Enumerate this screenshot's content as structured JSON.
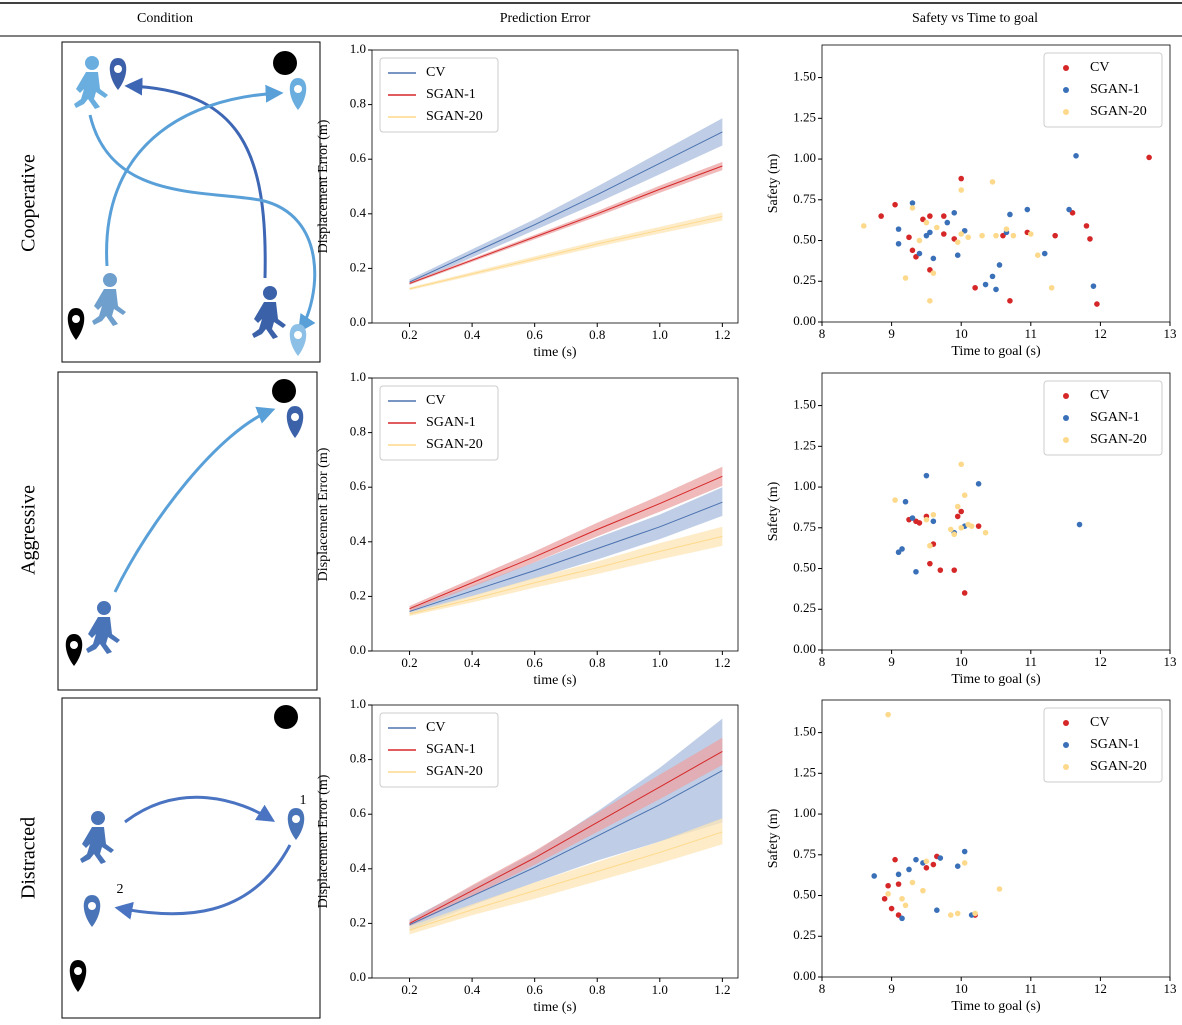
{
  "header": [
    "Condition",
    "Prediction Error",
    "Safety vs Time to goal"
  ],
  "rows": [
    "Cooperative",
    "Aggressive",
    "Distracted"
  ],
  "diagram_labels": [
    "1",
    "2"
  ],
  "chart_data": [
    {
      "type": "line",
      "xlabel": "time (s)",
      "ylabel": "Displacement Error (m)",
      "legend": "upper left",
      "xlim": [
        0.08,
        1.25
      ],
      "ylim": [
        0,
        1.0
      ],
      "xticks": [
        0.2,
        0.4,
        0.6,
        0.8,
        {
          "value": 1.0,
          "label": "1.0"
        },
        1.2
      ],
      "yticks": [
        {
          "value": 0,
          "label": "0.0"
        },
        0.2,
        0.4,
        0.6,
        0.8,
        {
          "value": 1.0,
          "label": "1.0"
        }
      ],
      "x": [
        0.2,
        0.4,
        0.6,
        0.8,
        1.0,
        1.2
      ],
      "series": [
        {
          "name": "CV",
          "color": "#4c72b0",
          "band_color": "#a9bddd",
          "values": [
            0.15,
            0.255,
            0.36,
            0.47,
            0.585,
            0.7
          ],
          "lower": [
            0.14,
            0.24,
            0.34,
            0.44,
            0.545,
            0.65
          ],
          "upper": [
            0.16,
            0.27,
            0.38,
            0.5,
            0.625,
            0.75
          ]
        },
        {
          "name": "SGAN-1",
          "color": "#d62728",
          "band_color": "#eba3a3",
          "values": [
            0.145,
            0.23,
            0.315,
            0.4,
            0.49,
            0.575
          ],
          "lower": [
            0.14,
            0.224,
            0.307,
            0.39,
            0.477,
            0.56
          ],
          "upper": [
            0.15,
            0.236,
            0.323,
            0.41,
            0.503,
            0.59
          ]
        },
        {
          "name": "SGAN-20",
          "color": "#fdd98c",
          "band_color": "#fde5b5",
          "values": [
            0.125,
            0.18,
            0.235,
            0.29,
            0.34,
            0.39
          ],
          "lower": [
            0.12,
            0.173,
            0.226,
            0.279,
            0.328,
            0.375
          ],
          "upper": [
            0.13,
            0.187,
            0.244,
            0.301,
            0.352,
            0.405
          ]
        }
      ]
    },
    {
      "type": "scatter",
      "xlabel": "Time to goal (s)",
      "ylabel": "Safety (m)",
      "legend": "upper right",
      "xlim": [
        8,
        13
      ],
      "ylim": [
        0,
        1.7
      ],
      "xticks": [
        8,
        9,
        10,
        11,
        12,
        13
      ],
      "yticks": [
        {
          "value": 0,
          "label": "0.00"
        },
        {
          "value": 0.25,
          "label": "0.25"
        },
        {
          "value": 0.5,
          "label": "0.50"
        },
        {
          "value": 0.75,
          "label": "0.75"
        },
        {
          "value": 1.0,
          "label": "1.00"
        },
        {
          "value": 1.25,
          "label": "1.25"
        },
        {
          "value": 1.5,
          "label": "1.50"
        }
      ],
      "series": [
        {
          "name": "CV",
          "color": "#d62728",
          "x": [
            12.7,
            10.0,
            8.85,
            9.05,
            9.25,
            9.3,
            9.45,
            9.55,
            9.55,
            9.75,
            9.9,
            10.2,
            10.6,
            10.7,
            10.95,
            11.35,
            11.6,
            11.8,
            11.85,
            11.95,
            9.75,
            9.35
          ],
          "values": [
            1.01,
            0.88,
            0.65,
            0.72,
            0.52,
            0.44,
            0.63,
            0.32,
            0.65,
            0.65,
            0.51,
            0.21,
            0.53,
            0.13,
            0.55,
            0.53,
            0.67,
            0.59,
            0.51,
            0.11,
            0.54,
            0.4
          ]
        },
        {
          "name": "SGAN-1",
          "color": "#3a70b8",
          "x": [
            11.65,
            9.3,
            9.1,
            9.1,
            9.4,
            9.5,
            9.6,
            9.95,
            9.9,
            10.05,
            10.35,
            10.45,
            10.5,
            10.55,
            10.65,
            10.7,
            10.95,
            11.2,
            11.55,
            11.9,
            9.8,
            9.55
          ],
          "values": [
            1.02,
            0.73,
            0.48,
            0.57,
            0.42,
            0.53,
            0.39,
            0.41,
            0.67,
            0.56,
            0.23,
            0.28,
            0.2,
            0.35,
            0.55,
            0.66,
            0.69,
            0.42,
            0.69,
            0.22,
            0.61,
            0.55
          ]
        },
        {
          "name": "SGAN-20",
          "color": "#fdd98c",
          "x": [
            8.6,
            9.2,
            9.3,
            9.5,
            9.55,
            9.65,
            9.6,
            10.0,
            10.0,
            10.1,
            10.3,
            10.45,
            10.5,
            10.65,
            10.75,
            11.0,
            11.1,
            11.3,
            9.95,
            9.4
          ],
          "values": [
            0.59,
            0.27,
            0.7,
            0.61,
            0.13,
            0.58,
            0.3,
            0.81,
            0.54,
            0.52,
            0.53,
            0.86,
            0.53,
            0.57,
            0.53,
            0.54,
            0.41,
            0.21,
            0.49,
            0.5
          ]
        }
      ]
    },
    {
      "type": "line",
      "xlabel": "time (s)",
      "ylabel": "Displacement Error (m)",
      "legend": "upper left",
      "xlim": [
        0.08,
        1.25
      ],
      "ylim": [
        0,
        1.0
      ],
      "xticks": [
        0.2,
        0.4,
        0.6,
        0.8,
        {
          "value": 1.0,
          "label": "1.0"
        },
        1.2
      ],
      "yticks": [
        {
          "value": 0,
          "label": "0.0"
        },
        0.2,
        0.4,
        0.6,
        0.8,
        {
          "value": 1.0,
          "label": "1.0"
        }
      ],
      "x": [
        0.2,
        0.4,
        0.6,
        0.8,
        1.0,
        1.2
      ],
      "series": [
        {
          "name": "CV",
          "color": "#4c72b0",
          "band_color": "#a9bddd",
          "values": [
            0.145,
            0.22,
            0.295,
            0.375,
            0.455,
            0.545
          ],
          "lower": [
            0.135,
            0.2,
            0.265,
            0.335,
            0.41,
            0.495
          ],
          "upper": [
            0.155,
            0.24,
            0.325,
            0.415,
            0.5,
            0.6
          ]
        },
        {
          "name": "SGAN-1",
          "color": "#d62728",
          "band_color": "#eba3a3",
          "values": [
            0.155,
            0.25,
            0.345,
            0.445,
            0.54,
            0.64
          ],
          "lower": [
            0.145,
            0.235,
            0.325,
            0.42,
            0.51,
            0.605
          ],
          "upper": [
            0.165,
            0.265,
            0.365,
            0.47,
            0.57,
            0.675
          ]
        },
        {
          "name": "SGAN-20",
          "color": "#fdd98c",
          "band_color": "#fde5b5",
          "values": [
            0.135,
            0.19,
            0.25,
            0.305,
            0.365,
            0.42
          ],
          "lower": [
            0.128,
            0.178,
            0.232,
            0.282,
            0.335,
            0.385
          ],
          "upper": [
            0.142,
            0.202,
            0.268,
            0.328,
            0.395,
            0.455
          ]
        }
      ]
    },
    {
      "type": "scatter",
      "xlabel": "Time to goal (s)",
      "ylabel": "Safety (m)",
      "legend": "upper right",
      "xlim": [
        8,
        13
      ],
      "ylim": [
        0,
        1.7
      ],
      "xticks": [
        8,
        9,
        10,
        11,
        12,
        13
      ],
      "yticks": [
        {
          "value": 0,
          "label": "0.00"
        },
        {
          "value": 0.25,
          "label": "0.25"
        },
        {
          "value": 0.5,
          "label": "0.50"
        },
        {
          "value": 0.75,
          "label": "0.75"
        },
        {
          "value": 1.0,
          "label": "1.00"
        },
        {
          "value": 1.25,
          "label": "1.25"
        },
        {
          "value": 1.5,
          "label": "1.50"
        }
      ],
      "series": [
        {
          "name": "CV",
          "color": "#d62728",
          "x": [
            9.25,
            9.35,
            9.5,
            9.6,
            9.55,
            9.7,
            9.9,
            10.0,
            10.05,
            10.25,
            9.95,
            9.4
          ],
          "values": [
            0.8,
            0.79,
            0.82,
            0.65,
            0.53,
            0.49,
            0.49,
            0.85,
            0.35,
            0.76,
            0.82,
            0.78
          ]
        },
        {
          "name": "SGAN-1",
          "color": "#3a70b8",
          "x": [
            9.1,
            9.15,
            9.2,
            9.3,
            9.35,
            9.5,
            9.6,
            9.9,
            10.05,
            10.25,
            11.7
          ],
          "values": [
            0.6,
            0.62,
            0.91,
            0.81,
            0.48,
            1.07,
            0.79,
            0.72,
            0.76,
            1.02,
            0.77
          ]
        },
        {
          "name": "SGAN-20",
          "color": "#fdd98c",
          "x": [
            9.05,
            9.5,
            9.55,
            9.6,
            9.85,
            9.95,
            10.0,
            10.05,
            10.1,
            10.15,
            10.35,
            10.0,
            9.9
          ],
          "values": [
            0.92,
            0.8,
            0.64,
            0.83,
            0.74,
            0.88,
            1.14,
            0.95,
            0.77,
            0.76,
            0.72,
            0.75,
            0.71
          ]
        }
      ]
    },
    {
      "type": "line",
      "xlabel": "time (s)",
      "ylabel": "Displacement Error (m)",
      "legend": "upper left",
      "xlim": [
        0.08,
        1.25
      ],
      "ylim": [
        0,
        1.0
      ],
      "xticks": [
        0.2,
        0.4,
        0.6,
        0.8,
        {
          "value": 1.0,
          "label": "1.0"
        },
        1.2
      ],
      "yticks": [
        {
          "value": 0,
          "label": "0.0"
        },
        0.2,
        0.4,
        0.6,
        0.8,
        {
          "value": 1.0,
          "label": "1.0"
        }
      ],
      "x": [
        0.2,
        0.4,
        0.6,
        0.8,
        1.0,
        1.2
      ],
      "series": [
        {
          "name": "CV",
          "color": "#4c72b0",
          "band_color": "#a9bddd",
          "values": [
            0.195,
            0.3,
            0.405,
            0.52,
            0.635,
            0.76
          ],
          "lower": [
            0.175,
            0.265,
            0.35,
            0.43,
            0.5,
            0.57
          ],
          "upper": [
            0.215,
            0.335,
            0.46,
            0.61,
            0.77,
            0.95
          ]
        },
        {
          "name": "SGAN-1",
          "color": "#d62728",
          "band_color": "#eba3a3",
          "values": [
            0.2,
            0.32,
            0.44,
            0.57,
            0.7,
            0.83
          ],
          "lower": [
            0.19,
            0.3,
            0.415,
            0.535,
            0.655,
            0.78
          ],
          "upper": [
            0.21,
            0.34,
            0.465,
            0.605,
            0.745,
            0.88
          ]
        },
        {
          "name": "SGAN-20",
          "color": "#fdd98c",
          "band_color": "#fde5b5",
          "values": [
            0.175,
            0.25,
            0.32,
            0.39,
            0.46,
            0.535
          ],
          "lower": [
            0.16,
            0.23,
            0.29,
            0.355,
            0.42,
            0.49
          ],
          "upper": [
            0.19,
            0.27,
            0.35,
            0.425,
            0.5,
            0.585
          ]
        }
      ]
    },
    {
      "type": "scatter",
      "xlabel": "Time to goal (s)",
      "ylabel": "Safety (m)",
      "legend": "upper right",
      "xlim": [
        8,
        13
      ],
      "ylim": [
        0,
        1.7
      ],
      "xticks": [
        8,
        9,
        10,
        11,
        12,
        13
      ],
      "yticks": [
        {
          "value": 0,
          "label": "0.00"
        },
        {
          "value": 0.25,
          "label": "0.25"
        },
        {
          "value": 0.5,
          "label": "0.50"
        },
        {
          "value": 0.75,
          "label": "0.75"
        },
        {
          "value": 1.0,
          "label": "1.00"
        },
        {
          "value": 1.25,
          "label": "1.25"
        },
        {
          "value": 1.5,
          "label": "1.50"
        }
      ],
      "series": [
        {
          "name": "CV",
          "color": "#d62728",
          "x": [
            8.9,
            8.95,
            9.0,
            9.05,
            9.1,
            9.1,
            9.5,
            9.6,
            9.65,
            10.2
          ],
          "values": [
            0.48,
            0.56,
            0.42,
            0.72,
            0.38,
            0.57,
            0.67,
            0.69,
            0.74,
            0.38
          ]
        },
        {
          "name": "SGAN-1",
          "color": "#3a70b8",
          "x": [
            8.75,
            9.1,
            9.15,
            9.25,
            9.35,
            9.45,
            9.65,
            9.7,
            9.95,
            10.05,
            10.15
          ],
          "values": [
            0.62,
            0.63,
            0.36,
            0.66,
            0.72,
            0.7,
            0.41,
            0.73,
            0.68,
            0.77,
            0.38
          ]
        },
        {
          "name": "SGAN-20",
          "color": "#fdd98c",
          "x": [
            8.95,
            8.95,
            9.15,
            9.2,
            9.3,
            9.45,
            9.5,
            9.85,
            9.95,
            10.05,
            10.2,
            10.55
          ],
          "values": [
            1.61,
            0.51,
            0.48,
            0.44,
            0.58,
            0.53,
            0.71,
            0.38,
            0.39,
            0.7,
            0.39,
            0.54
          ]
        }
      ]
    }
  ]
}
